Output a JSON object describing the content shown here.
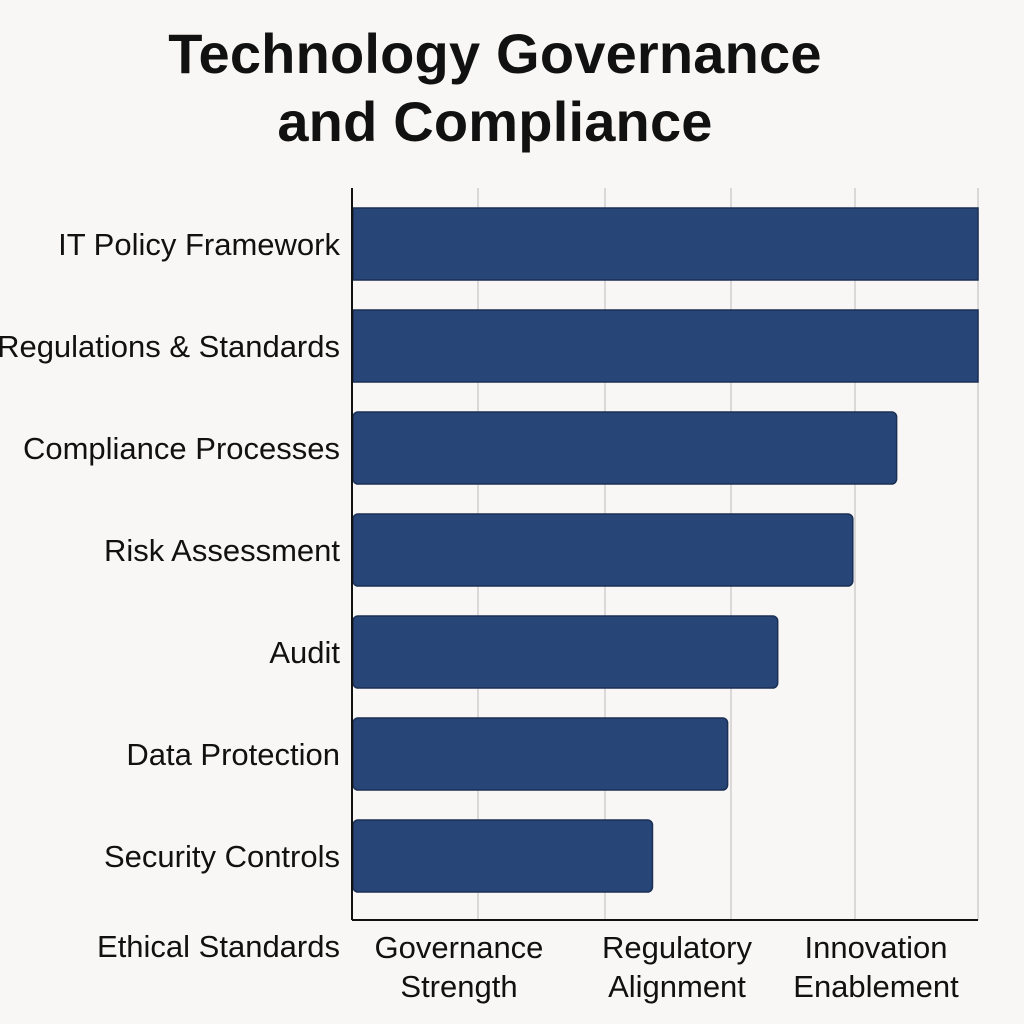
{
  "chart_data": {
    "type": "bar",
    "orientation": "horizontal",
    "title_lines": [
      "Technology Governance",
      "and Compliance"
    ],
    "categories": [
      "IT Policy Framework",
      "Regulations & Standards",
      "Compliance Processes",
      "Risk Assessment",
      "Audit",
      "Data Protection",
      "Security Controls",
      "Ethical Standards"
    ],
    "values": [
      5.0,
      5.0,
      4.35,
      4.0,
      3.4,
      3.0,
      2.4,
      null
    ],
    "x_categories": [
      [
        "Governance",
        "Strength"
      ],
      [
        "Regulatory",
        "Alignment"
      ],
      [
        "Innovation",
        "Enablement"
      ]
    ],
    "xlim": [
      0,
      5
    ],
    "grid": true,
    "bar_color": "#274677"
  }
}
